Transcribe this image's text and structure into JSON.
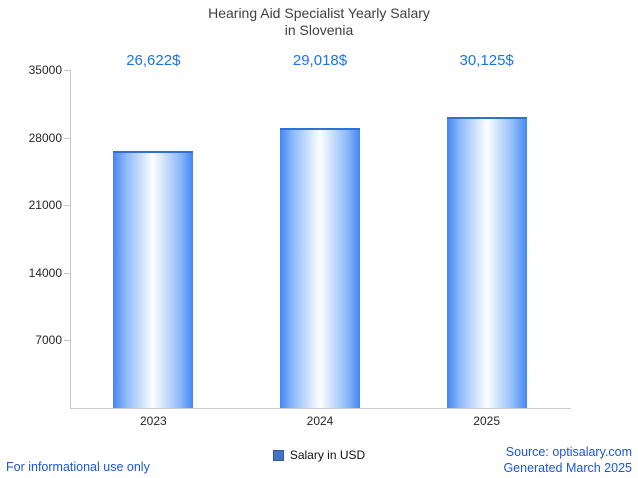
{
  "title": {
    "line1": "Hearing Aid Specialist Yearly Salary",
    "line2": "in Slovenia"
  },
  "chart_data": {
    "type": "bar",
    "categories": [
      "2023",
      "2024",
      "2025"
    ],
    "values": [
      26622,
      29018,
      30125
    ],
    "value_labels": [
      "26,622$",
      "29,018$",
      "30,125$"
    ],
    "series_name": "Salary in USD",
    "title": "Hearing Aid Specialist Yearly Salary in Slovenia",
    "xlabel": "",
    "ylabel": "",
    "ylim": [
      0,
      35000
    ],
    "yticks": [
      7000,
      14000,
      21000,
      28000,
      35000
    ],
    "grid": false,
    "legend_position": "bottom-center"
  },
  "legend": {
    "label": "Salary in USD"
  },
  "footer": {
    "disclaimer": "For informational use only",
    "source": "Source: optisalary.com",
    "generated": "Generated March 2025"
  },
  "colors": {
    "bar_edge": "#4285f4",
    "bar_top": "#2f6fd8",
    "legend_swatch": "#4472c4",
    "value_label": "#1a73e8",
    "link": "#1a56db",
    "title_text": "#3f3f3f",
    "axis": "#c9c9c9"
  }
}
